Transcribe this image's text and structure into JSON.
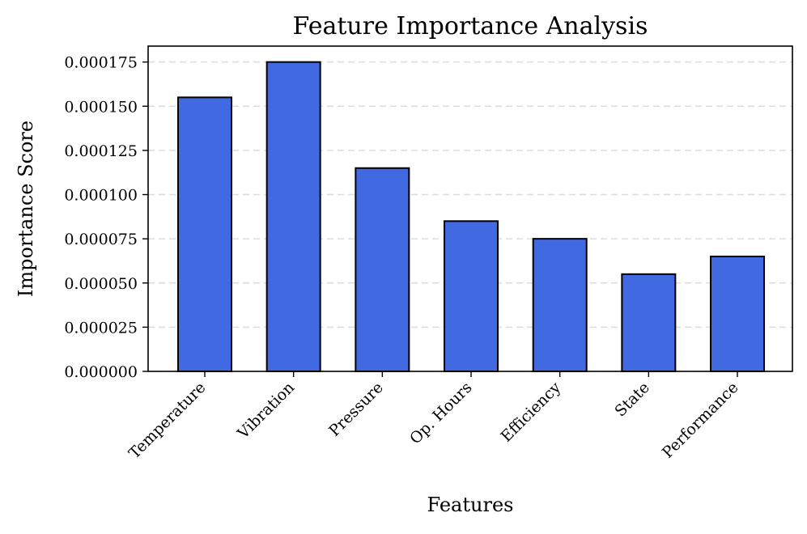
{
  "chart_data": {
    "type": "bar",
    "title": "Feature Importance Analysis",
    "xlabel": "Features",
    "ylabel": "Importance Score",
    "categories": [
      "Temperature",
      "Vibration",
      "Pressure",
      "Op. Hours",
      "Efficiency",
      "State",
      "Performance"
    ],
    "values": [
      0.000155,
      0.000175,
      0.000115,
      8.5e-05,
      7.5e-05,
      5.5e-05,
      6.5e-05
    ],
    "ylim": [
      0,
      0.000184
    ],
    "yticks": [
      0.0,
      2.5e-05,
      5e-05,
      7.5e-05,
      0.0001,
      0.000125,
      0.00015,
      0.000175
    ],
    "ytick_labels": [
      "0.000000",
      "0.000025",
      "0.000050",
      "0.000075",
      "0.000100",
      "0.000125",
      "0.000150",
      "0.000175"
    ],
    "bar_color": "#4169e1",
    "grid": "y-dashed",
    "legend": "none"
  }
}
